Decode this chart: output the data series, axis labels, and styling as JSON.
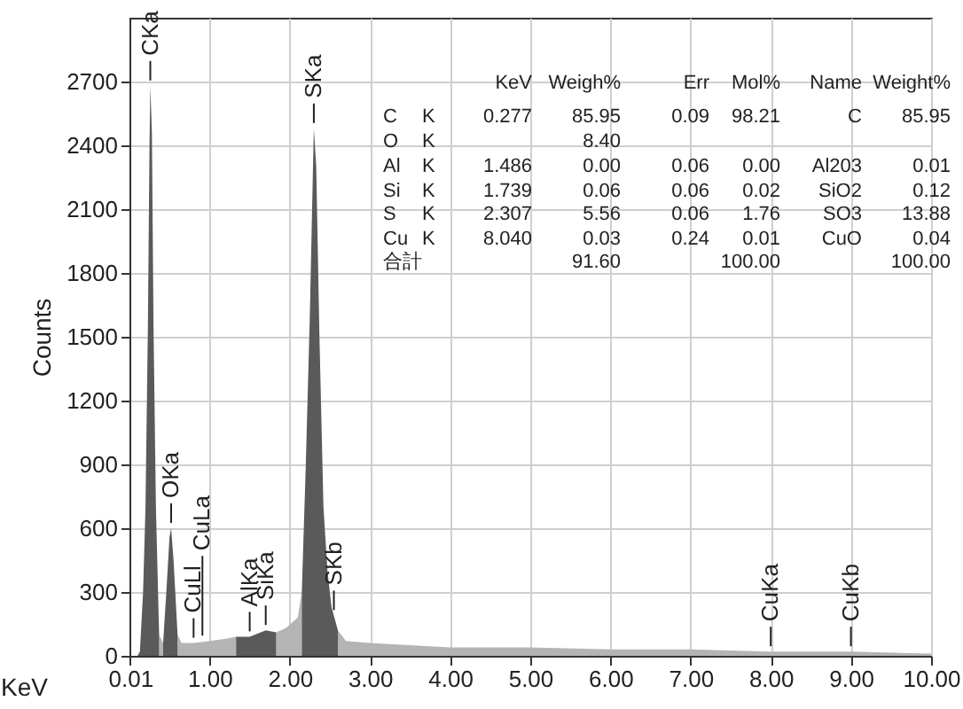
{
  "chart_data": {
    "type": "area",
    "xlabel": "KeV",
    "ylabel": "Counts",
    "xlim": [
      0,
      10
    ],
    "ylim": [
      0,
      3000
    ],
    "xticks": [
      0.01,
      {
        "value": 1,
        "label": "1.00"
      },
      {
        "value": 2,
        "label": "2.00"
      },
      {
        "value": 3,
        "label": "3.00"
      },
      {
        "value": 4,
        "label": "4.00"
      },
      {
        "value": 5,
        "label": "5.00"
      },
      {
        "value": 6,
        "label": "6.00"
      },
      {
        "value": 7,
        "label": "7.00"
      },
      {
        "value": 8,
        "label": "8.00"
      },
      {
        "value": 9,
        "label": "9.00"
      },
      {
        "value": 10,
        "label": "10.00"
      }
    ],
    "yticks": [
      0,
      300,
      600,
      900,
      1200,
      1500,
      1800,
      2100,
      2400,
      2700
    ],
    "grid": true,
    "series": [
      {
        "color": "#b4b4b4",
        "x": [
          0.37,
          0.42
        ],
        "values": [
          100,
          60
        ]
      },
      {
        "color": "#b4b4b4",
        "x": [
          0.6,
          0.65,
          0.8,
          1.0,
          1.2,
          1.33
        ],
        "values": [
          100,
          60,
          60,
          70,
          80,
          90
        ]
      },
      {
        "color": "#b4b4b4",
        "x": [
          1.83,
          1.95,
          2.1,
          2.15
        ],
        "values": [
          110,
          130,
          180,
          300
        ]
      },
      {
        "color": "#b4b4b4",
        "x": [
          2.6,
          2.7,
          3.0,
          3.5,
          4.0,
          5.0,
          6.0,
          7.0,
          8.0,
          9.0,
          10.0
        ],
        "values": [
          120,
          70,
          60,
          50,
          40,
          40,
          30,
          30,
          20,
          20,
          10
        ]
      },
      {
        "color": "#5a5a5a",
        "x": [
          0.1,
          0.13,
          0.17,
          0.2,
          0.23,
          0.25,
          0.26,
          0.28,
          0.3,
          0.33,
          0.37
        ],
        "values": [
          0,
          20,
          300,
          700,
          1550,
          2400,
          2680,
          2460,
          1550,
          700,
          100
        ]
      },
      {
        "color": "#5a5a5a",
        "x": [
          0.42,
          0.46,
          0.5,
          0.52,
          0.55,
          0.6
        ],
        "values": [
          60,
          300,
          560,
          600,
          450,
          100
        ]
      },
      {
        "color": "#5a5a5a",
        "x": [
          1.33,
          1.5,
          1.7,
          1.83
        ],
        "values": [
          90,
          90,
          120,
          110
        ]
      },
      {
        "color": "#5a5a5a",
        "x": [
          2.15,
          2.2,
          2.25,
          2.3,
          2.33,
          2.37,
          2.42,
          2.47,
          2.52,
          2.6
        ],
        "values": [
          300,
          900,
          1600,
          2480,
          2300,
          1500,
          700,
          400,
          230,
          120
        ]
      }
    ],
    "annotations": [
      {
        "text": "CKa",
        "x": 0.26,
        "y": 2680
      },
      {
        "text": "OKa",
        "x": 0.52,
        "y": 600
      },
      {
        "text": "CuLl",
        "x": 0.8,
        "y": 60
      },
      {
        "text": "CuLa",
        "x": 0.91,
        "y": 70
      },
      {
        "text": "AlKa",
        "x": 1.5,
        "y": 90
      },
      {
        "text": "SiKa",
        "x": 1.7,
        "y": 120
      },
      {
        "text": "SKa",
        "x": 2.3,
        "y": 2480
      },
      {
        "text": "SKb",
        "x": 2.55,
        "y": 190
      },
      {
        "text": "CuKa",
        "x": 8.0,
        "y": 20
      },
      {
        "text": "CuKb",
        "x": 9.0,
        "y": 20
      },
      "KeV",
      "Weigh%",
      "Err",
      "Mol%",
      "Name",
      "Weight%",
      "C",
      "K",
      "0.277",
      "85.95",
      "0.09",
      "98.21",
      "C",
      "85.95",
      "O",
      "K",
      "8.40",
      "Al",
      "K",
      "1.486",
      "0.00",
      "0.06",
      "0.00",
      "Al203",
      "0.01",
      "Si",
      "K",
      "1.739",
      "0.06",
      "0.06",
      "0.02",
      "SiO2",
      "0.12",
      "S",
      "K",
      "2.307",
      "5.56",
      "0.06",
      "1.76",
      "SO3",
      "13.88",
      "Cu",
      "K",
      "8.040",
      "0.03",
      "0.24",
      "0.01",
      "CuO",
      "0.04",
      "合計",
      "91.60",
      "100.00",
      "100.00"
    ]
  }
}
